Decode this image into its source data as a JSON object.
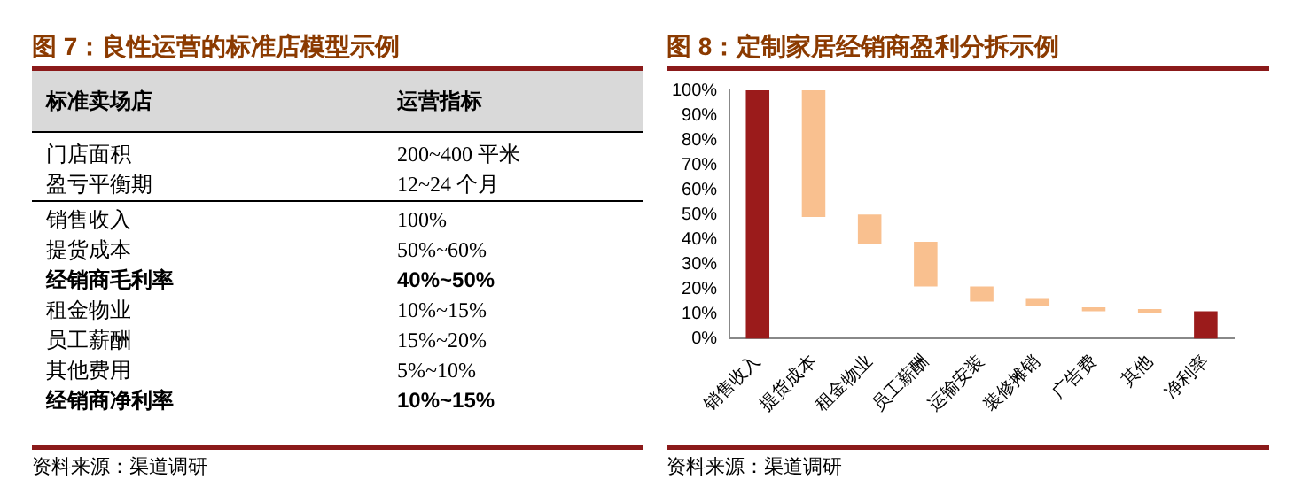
{
  "chart_data": [
    {
      "type": "other",
      "title": "图 7：良性运营的标准店模型示例",
      "annotations": [
        "标准卖场店",
        "运营指标",
        "门店面积",
        "200~400 平米",
        "盈亏平衡期",
        "12~24 个月",
        "销售收入",
        "100%",
        "提货成本",
        "50%~60%",
        "经销商毛利率",
        "40%~50%",
        "租金物业",
        "10%~15%",
        "员工薪酬",
        "15%~20%",
        "其他费用",
        "5%~10%",
        "经销商净利率",
        "10%~15%",
        "资料来源：渠道调研"
      ]
    },
    {
      "type": "bar",
      "title": "图 8：定制家居经销商盈利分拆示例",
      "categories": [
        "销售收入",
        "提货成本",
        "租金物业",
        "员工薪酬",
        "运输安装",
        "装修摊销",
        "广告费",
        "其他",
        "净利率"
      ],
      "base": [
        0,
        49,
        38,
        21,
        15,
        13,
        11,
        10.3,
        0
      ],
      "values": [
        100,
        51,
        12,
        18,
        6,
        3,
        1.6,
        1.6,
        11
      ],
      "colors": [
        "#9b1b1b",
        "#f9c08f",
        "#f9c08f",
        "#f9c08f",
        "#f9c08f",
        "#f9c08f",
        "#f9c08f",
        "#f9c08f",
        "#9b1b1b"
      ],
      "ylim": [
        0,
        100
      ],
      "yticks": [
        {
          "value": 0,
          "label": "0%"
        },
        {
          "value": 10,
          "label": "10%"
        },
        {
          "value": 20,
          "label": "20%"
        },
        {
          "value": 30,
          "label": "30%"
        },
        {
          "value": 40,
          "label": "40%"
        },
        {
          "value": 50,
          "label": "50%"
        },
        {
          "value": 60,
          "label": "60%"
        },
        {
          "value": 70,
          "label": "70%"
        },
        {
          "value": 80,
          "label": "80%"
        },
        {
          "value": 90,
          "label": "90%"
        },
        {
          "value": 100,
          "label": "100%"
        }
      ],
      "grid": false,
      "legend": false,
      "annotations": [
        "资料来源：渠道调研"
      ]
    }
  ]
}
